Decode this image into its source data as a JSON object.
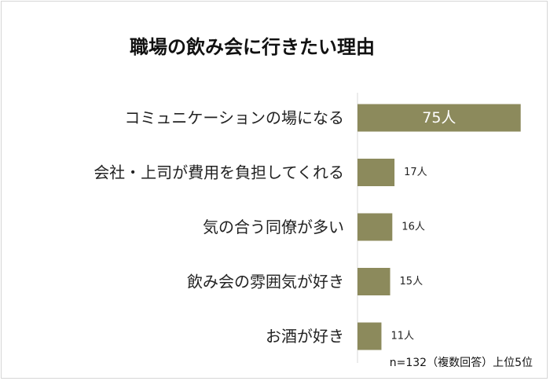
{
  "chart_data": {
    "type": "bar",
    "orientation": "horizontal",
    "title": "職場の飲み会に行きたい理由",
    "categories": [
      "コミュニケーションの場になる",
      "会社・上司が費用を負担してくれる",
      "気の合う同僚が多い",
      "飲み会の雰囲気が好き",
      "お酒が好き"
    ],
    "values": [
      75,
      17,
      16,
      15,
      11
    ],
    "value_labels": [
      "75人",
      "17人",
      "16人",
      "15人",
      "11人"
    ],
    "unit": "人",
    "xlim": [
      0,
      78
    ],
    "bar_color": "#8c8a5c",
    "grid": false,
    "footnote": "n=132（複数回答）上位5位"
  }
}
